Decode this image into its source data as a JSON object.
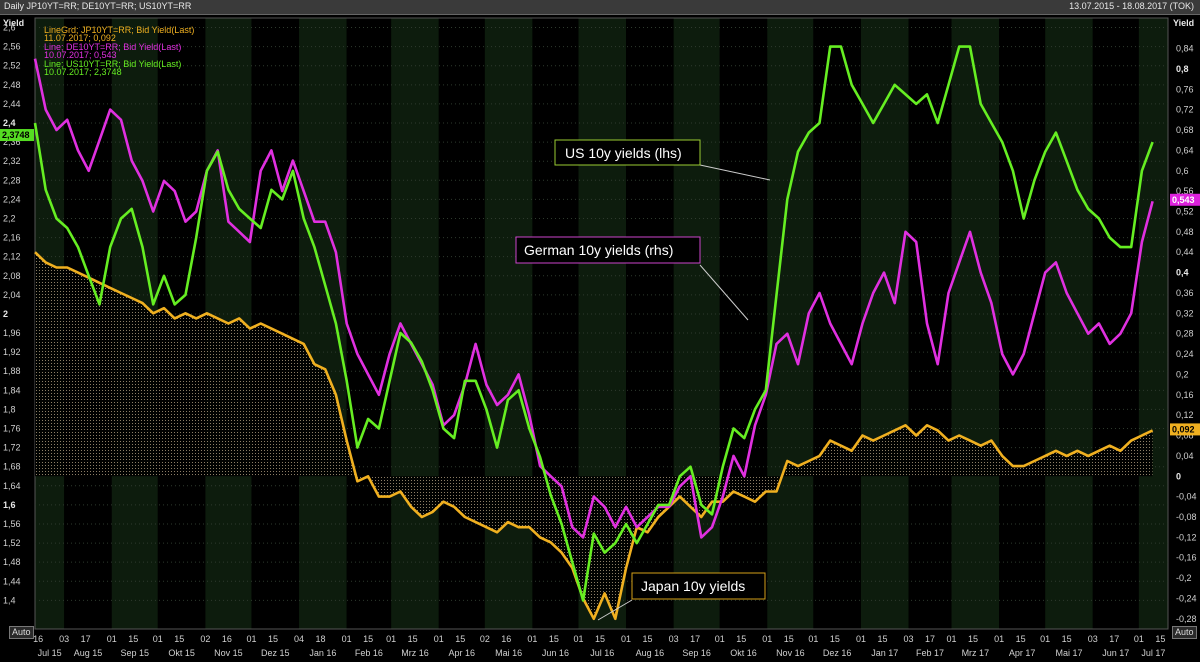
{
  "window": {
    "title": "Daily JP10YT=RR; DE10YT=RR; US10YT=RR",
    "date_range": "13.07.2015 - 18.08.2017 (TOK)"
  },
  "controls": {
    "auto_left": "Auto",
    "auto_right": "Auto"
  },
  "chart_data": {
    "type": "line",
    "left_axis": {
      "label": "Yield",
      "ylim": [
        1.34,
        2.62
      ],
      "ticks": [
        "2,6",
        "2,56",
        "2,52",
        "2,48",
        "2,44",
        "2,4",
        "2,36",
        "2,32",
        "2,28",
        "2,24",
        "2,2",
        "2,16",
        "2,12",
        "2,08",
        "2,04",
        "2",
        "1,96",
        "1,92",
        "1,88",
        "1,84",
        "1,8",
        "1,76",
        "1,72",
        "1,68",
        "1,64",
        "1,6",
        "1,56",
        "1,52",
        "1,48",
        "1,44",
        "1,4"
      ],
      "bold": [
        "2,4",
        "2",
        "1,6"
      ]
    },
    "right_axis": {
      "label": "Yield",
      "ylim": [
        -0.3,
        0.9
      ],
      "ticks": [
        "0,84",
        "0,8",
        "0,76",
        "0,72",
        "0,68",
        "0,64",
        "0,6",
        "0,56",
        "0,52",
        "0,48",
        "0,44",
        "0,4",
        "0,36",
        "0,32",
        "0,28",
        "0,24",
        "0,2",
        "0,16",
        "0,12",
        "0,08",
        "0,04",
        "0",
        "-0,04",
        "-0,08",
        "-0,12",
        "-0,16",
        "-0,2",
        "-0,24",
        "-0,28"
      ],
      "bold": [
        "0,8",
        "0,4",
        "0"
      ]
    },
    "x_axis": {
      "days": [
        "16",
        "03",
        "17",
        "01",
        "15",
        "01",
        "15",
        "02",
        "16",
        "01",
        "15",
        "04",
        "18",
        "01",
        "15",
        "01",
        "15",
        "01",
        "15",
        "02",
        "16",
        "01",
        "15",
        "01",
        "15",
        "01",
        "15",
        "03",
        "17",
        "01",
        "15",
        "01",
        "15",
        "01",
        "15",
        "01",
        "15",
        "03",
        "17",
        "01",
        "15",
        "01",
        "15",
        "01",
        "15",
        "03",
        "17",
        "01",
        "15",
        "01",
        "15",
        "01",
        "15",
        "03",
        "16"
      ],
      "months": [
        "Jul 15",
        "Aug 15",
        "Sep 15",
        "Okt 15",
        "Nov 15",
        "Dez 15",
        "Jan 16",
        "Feb 16",
        "Mrz 16",
        "Apr 16",
        "Mai 16",
        "Jun 16",
        "Jul 16",
        "Aug 16",
        "Sep 16",
        "Okt 16",
        "Nov 16",
        "Dez 16",
        "Jan 17",
        "Feb 17",
        "Mrz 17",
        "Apr 17",
        "Mai 17",
        "Jun 17",
        "Jul 17"
      ]
    },
    "legend": [
      {
        "line1": "LineGrd; JP10YT=RR; Bid Yield(Last)",
        "line2": "11.07.2017; 0,092",
        "color": "#f0b020"
      },
      {
        "line1": "Line; DE10YT=RR; Bid Yield(Last)",
        "line2": "10.07.2017; 0,543",
        "color": "#e030e0"
      },
      {
        "line1": "Line; US10YT=RR; Bid Yield(Last)",
        "line2": "10.07.2017; 2,3748",
        "color": "#66ee22"
      }
    ],
    "last_value_tags": {
      "us": "2,3748",
      "de": "0,543",
      "jp": "0,092"
    },
    "annotations": {
      "us": "US 10y yields (lhs)",
      "de": "German 10y yields (rhs)",
      "jp": "Japan 10y yields"
    },
    "series": [
      {
        "key": "us",
        "axis": "left",
        "color": "#66ee22",
        "x": [
          "2015-07-13",
          "2015-07-20",
          "2015-07-27",
          "2015-08-03",
          "2015-08-10",
          "2015-08-17",
          "2015-08-24",
          "2015-08-31",
          "2015-09-07",
          "2015-09-14",
          "2015-09-21",
          "2015-09-28",
          "2015-10-05",
          "2015-10-12",
          "2015-10-19",
          "2015-10-26",
          "2015-11-02",
          "2015-11-09",
          "2015-11-16",
          "2015-11-23",
          "2015-11-30",
          "2015-12-07",
          "2015-12-14",
          "2015-12-21",
          "2015-12-28",
          "2016-01-04",
          "2016-01-11",
          "2016-01-18",
          "2016-01-25",
          "2016-02-01",
          "2016-02-08",
          "2016-02-15",
          "2016-02-22",
          "2016-02-29",
          "2016-03-07",
          "2016-03-14",
          "2016-03-21",
          "2016-03-28",
          "2016-04-04",
          "2016-04-11",
          "2016-04-18",
          "2016-04-25",
          "2016-05-02",
          "2016-05-09",
          "2016-05-16",
          "2016-05-23",
          "2016-05-30",
          "2016-06-06",
          "2016-06-13",
          "2016-06-20",
          "2016-06-27",
          "2016-07-04",
          "2016-07-11",
          "2016-07-18",
          "2016-07-25",
          "2016-08-01",
          "2016-08-08",
          "2016-08-15",
          "2016-08-22",
          "2016-08-29",
          "2016-09-05",
          "2016-09-12",
          "2016-09-19",
          "2016-09-26",
          "2016-10-03",
          "2016-10-10",
          "2016-10-17",
          "2016-10-24",
          "2016-10-31",
          "2016-11-07",
          "2016-11-14",
          "2016-11-21",
          "2016-11-28",
          "2016-12-05",
          "2016-12-12",
          "2016-12-19",
          "2016-12-26",
          "2017-01-02",
          "2017-01-09",
          "2017-01-16",
          "2017-01-23",
          "2017-01-30",
          "2017-02-06",
          "2017-02-13",
          "2017-02-20",
          "2017-02-27",
          "2017-03-06",
          "2017-03-13",
          "2017-03-20",
          "2017-03-27",
          "2017-04-03",
          "2017-04-10",
          "2017-04-17",
          "2017-04-24",
          "2017-05-01",
          "2017-05-08",
          "2017-05-15",
          "2017-05-22",
          "2017-05-29",
          "2017-06-05",
          "2017-06-12",
          "2017-06-19",
          "2017-06-26",
          "2017-07-03",
          "2017-07-10"
        ],
        "values": [
          2.4,
          2.26,
          2.2,
          2.18,
          2.14,
          2.08,
          2.02,
          2.14,
          2.2,
          2.22,
          2.14,
          2.02,
          2.08,
          2.02,
          2.04,
          2.16,
          2.3,
          2.34,
          2.26,
          2.22,
          2.2,
          2.18,
          2.26,
          2.24,
          2.3,
          2.2,
          2.14,
          2.06,
          1.98,
          1.86,
          1.72,
          1.78,
          1.76,
          1.86,
          1.96,
          1.94,
          1.9,
          1.84,
          1.76,
          1.74,
          1.86,
          1.86,
          1.8,
          1.72,
          1.82,
          1.84,
          1.76,
          1.7,
          1.62,
          1.56,
          1.48,
          1.4,
          1.54,
          1.5,
          1.52,
          1.56,
          1.52,
          1.56,
          1.6,
          1.6,
          1.66,
          1.68,
          1.6,
          1.58,
          1.68,
          1.76,
          1.74,
          1.8,
          1.84,
          2.04,
          2.24,
          2.34,
          2.38,
          2.4,
          2.56,
          2.56,
          2.48,
          2.44,
          2.4,
          2.44,
          2.48,
          2.46,
          2.44,
          2.46,
          2.4,
          2.48,
          2.56,
          2.56,
          2.44,
          2.4,
          2.36,
          2.3,
          2.2,
          2.28,
          2.34,
          2.38,
          2.32,
          2.26,
          2.22,
          2.2,
          2.16,
          2.14,
          2.14,
          2.3,
          2.36
        ]
      },
      {
        "key": "de",
        "axis": "right",
        "color": "#e030e0",
        "x": [
          "2015-07-13",
          "2015-07-20",
          "2015-07-27",
          "2015-08-03",
          "2015-08-10",
          "2015-08-17",
          "2015-08-24",
          "2015-08-31",
          "2015-09-07",
          "2015-09-14",
          "2015-09-21",
          "2015-09-28",
          "2015-10-05",
          "2015-10-12",
          "2015-10-19",
          "2015-10-26",
          "2015-11-02",
          "2015-11-09",
          "2015-11-16",
          "2015-11-23",
          "2015-11-30",
          "2015-12-07",
          "2015-12-14",
          "2015-12-21",
          "2015-12-28",
          "2016-01-04",
          "2016-01-11",
          "2016-01-18",
          "2016-01-25",
          "2016-02-01",
          "2016-02-08",
          "2016-02-15",
          "2016-02-22",
          "2016-02-29",
          "2016-03-07",
          "2016-03-14",
          "2016-03-21",
          "2016-03-28",
          "2016-04-04",
          "2016-04-11",
          "2016-04-18",
          "2016-04-25",
          "2016-05-02",
          "2016-05-09",
          "2016-05-16",
          "2016-05-23",
          "2016-05-30",
          "2016-06-06",
          "2016-06-13",
          "2016-06-20",
          "2016-06-27",
          "2016-07-04",
          "2016-07-11",
          "2016-07-18",
          "2016-07-25",
          "2016-08-01",
          "2016-08-08",
          "2016-08-15",
          "2016-08-22",
          "2016-08-29",
          "2016-09-05",
          "2016-09-12",
          "2016-09-19",
          "2016-09-26",
          "2016-10-03",
          "2016-10-10",
          "2016-10-17",
          "2016-10-24",
          "2016-10-31",
          "2016-11-07",
          "2016-11-14",
          "2016-11-21",
          "2016-11-28",
          "2016-12-05",
          "2016-12-12",
          "2016-12-19",
          "2016-12-26",
          "2017-01-02",
          "2017-01-09",
          "2017-01-16",
          "2017-01-23",
          "2017-01-30",
          "2017-02-06",
          "2017-02-13",
          "2017-02-20",
          "2017-02-27",
          "2017-03-06",
          "2017-03-13",
          "2017-03-20",
          "2017-03-27",
          "2017-04-03",
          "2017-04-10",
          "2017-04-17",
          "2017-04-24",
          "2017-05-01",
          "2017-05-08",
          "2017-05-15",
          "2017-05-22",
          "2017-05-29",
          "2017-06-05",
          "2017-06-12",
          "2017-06-19",
          "2017-06-26",
          "2017-07-03",
          "2017-07-10"
        ],
        "values": [
          0.82,
          0.72,
          0.68,
          0.7,
          0.64,
          0.6,
          0.66,
          0.72,
          0.7,
          0.62,
          0.58,
          0.52,
          0.58,
          0.56,
          0.5,
          0.52,
          0.6,
          0.64,
          0.5,
          0.48,
          0.46,
          0.6,
          0.64,
          0.56,
          0.62,
          0.56,
          0.5,
          0.5,
          0.44,
          0.3,
          0.24,
          0.2,
          0.16,
          0.24,
          0.3,
          0.26,
          0.22,
          0.18,
          0.1,
          0.12,
          0.18,
          0.26,
          0.18,
          0.14,
          0.16,
          0.2,
          0.12,
          0.02,
          0.0,
          -0.02,
          -0.1,
          -0.12,
          -0.04,
          -0.06,
          -0.1,
          -0.06,
          -0.1,
          -0.08,
          -0.06,
          -0.06,
          -0.02,
          0.0,
          -0.12,
          -0.1,
          -0.04,
          0.04,
          0.0,
          0.1,
          0.16,
          0.26,
          0.28,
          0.22,
          0.32,
          0.36,
          0.3,
          0.26,
          0.22,
          0.3,
          0.36,
          0.4,
          0.34,
          0.48,
          0.46,
          0.3,
          0.22,
          0.36,
          0.42,
          0.48,
          0.4,
          0.34,
          0.24,
          0.2,
          0.24,
          0.32,
          0.4,
          0.42,
          0.36,
          0.32,
          0.28,
          0.3,
          0.26,
          0.28,
          0.32,
          0.46,
          0.54
        ]
      },
      {
        "key": "jp",
        "axis": "right",
        "color": "#f0b020",
        "x": [
          "2015-07-13",
          "2015-07-20",
          "2015-07-27",
          "2015-08-03",
          "2015-08-10",
          "2015-08-17",
          "2015-08-24",
          "2015-08-31",
          "2015-09-07",
          "2015-09-14",
          "2015-09-21",
          "2015-09-28",
          "2015-10-05",
          "2015-10-12",
          "2015-10-19",
          "2015-10-26",
          "2015-11-02",
          "2015-11-09",
          "2015-11-16",
          "2015-11-23",
          "2015-11-30",
          "2015-12-07",
          "2015-12-14",
          "2015-12-21",
          "2015-12-28",
          "2016-01-04",
          "2016-01-11",
          "2016-01-18",
          "2016-01-25",
          "2016-02-01",
          "2016-02-08",
          "2016-02-15",
          "2016-02-22",
          "2016-02-29",
          "2016-03-07",
          "2016-03-14",
          "2016-03-21",
          "2016-03-28",
          "2016-04-04",
          "2016-04-11",
          "2016-04-18",
          "2016-04-25",
          "2016-05-02",
          "2016-05-09",
          "2016-05-16",
          "2016-05-23",
          "2016-05-30",
          "2016-06-06",
          "2016-06-13",
          "2016-06-20",
          "2016-06-27",
          "2016-07-04",
          "2016-07-11",
          "2016-07-18",
          "2016-07-25",
          "2016-08-01",
          "2016-08-08",
          "2016-08-15",
          "2016-08-22",
          "2016-08-29",
          "2016-09-05",
          "2016-09-12",
          "2016-09-19",
          "2016-09-26",
          "2016-10-03",
          "2016-10-10",
          "2016-10-17",
          "2016-10-24",
          "2016-10-31",
          "2016-11-07",
          "2016-11-14",
          "2016-11-21",
          "2016-11-28",
          "2016-12-05",
          "2016-12-12",
          "2016-12-19",
          "2016-12-26",
          "2017-01-02",
          "2017-01-09",
          "2017-01-16",
          "2017-01-23",
          "2017-01-30",
          "2017-02-06",
          "2017-02-13",
          "2017-02-20",
          "2017-02-27",
          "2017-03-06",
          "2017-03-13",
          "2017-03-20",
          "2017-03-27",
          "2017-04-03",
          "2017-04-10",
          "2017-04-17",
          "2017-04-24",
          "2017-05-01",
          "2017-05-08",
          "2017-05-15",
          "2017-05-22",
          "2017-05-29",
          "2017-06-05",
          "2017-06-12",
          "2017-06-19",
          "2017-06-26",
          "2017-07-03",
          "2017-07-10"
        ],
        "values": [
          0.44,
          0.42,
          0.41,
          0.41,
          0.4,
          0.39,
          0.38,
          0.37,
          0.36,
          0.35,
          0.34,
          0.32,
          0.33,
          0.31,
          0.32,
          0.31,
          0.32,
          0.31,
          0.3,
          0.31,
          0.29,
          0.3,
          0.29,
          0.28,
          0.27,
          0.26,
          0.22,
          0.21,
          0.16,
          0.07,
          -0.01,
          0.0,
          -0.04,
          -0.04,
          -0.03,
          -0.06,
          -0.08,
          -0.07,
          -0.05,
          -0.06,
          -0.08,
          -0.09,
          -0.1,
          -0.11,
          -0.09,
          -0.1,
          -0.1,
          -0.12,
          -0.13,
          -0.15,
          -0.18,
          -0.24,
          -0.28,
          -0.23,
          -0.28,
          -0.18,
          -0.1,
          -0.11,
          -0.08,
          -0.06,
          -0.04,
          -0.06,
          -0.08,
          -0.05,
          -0.05,
          -0.03,
          -0.04,
          -0.05,
          -0.03,
          -0.03,
          0.03,
          0.02,
          0.03,
          0.04,
          0.07,
          0.06,
          0.05,
          0.08,
          0.07,
          0.08,
          0.09,
          0.1,
          0.08,
          0.1,
          0.09,
          0.07,
          0.08,
          0.07,
          0.06,
          0.07,
          0.04,
          0.02,
          0.02,
          0.03,
          0.04,
          0.05,
          0.04,
          0.05,
          0.04,
          0.05,
          0.06,
          0.05,
          0.07,
          0.08,
          0.09
        ]
      }
    ]
  }
}
